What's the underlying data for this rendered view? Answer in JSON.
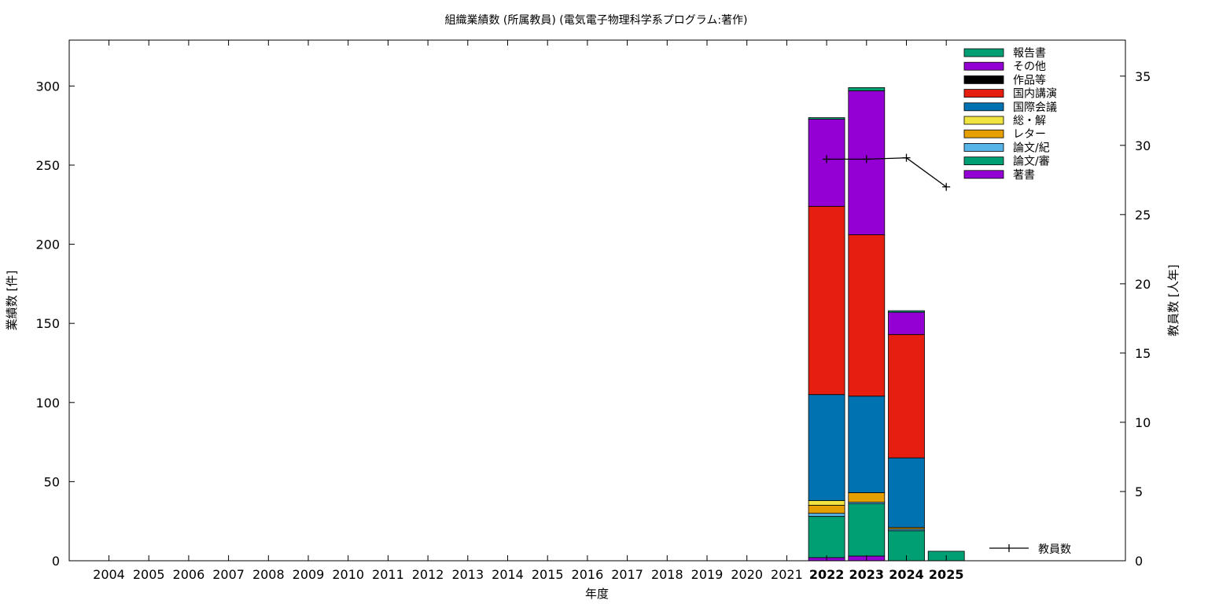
{
  "chart_data": {
    "type": "bar",
    "title": "組織業績数 (所属教員) (電気電子物理科学系プログラム:著作)",
    "xlabel": "年度",
    "ylabel": "業績数 [件]",
    "y2label": "教員数 [人年]",
    "categories": [
      "2004",
      "2005",
      "2006",
      "2007",
      "2008",
      "2009",
      "2010",
      "2011",
      "2012",
      "2013",
      "2014",
      "2015",
      "2016",
      "2017",
      "2018",
      "2019",
      "2020",
      "2021",
      "2022",
      "2023",
      "2024",
      "2025"
    ],
    "bold_categories": [
      "2022",
      "2023",
      "2024",
      "2025"
    ],
    "ylim": [
      0,
      329
    ],
    "y2lim": [
      0,
      37.6
    ],
    "yticks": [
      0,
      50,
      100,
      150,
      200,
      250,
      300
    ],
    "y2ticks": [
      0,
      5,
      10,
      15,
      20,
      25,
      30,
      35
    ],
    "grid": false,
    "legend_position": "top-right",
    "stacked": true,
    "series": [
      {
        "name": "著書",
        "color": "#9400d3",
        "values": [
          0,
          0,
          0,
          0,
          0,
          0,
          0,
          0,
          0,
          0,
          0,
          0,
          0,
          0,
          0,
          0,
          0,
          0,
          2,
          3,
          0,
          0
        ]
      },
      {
        "name": "論文/審",
        "color": "#009e73",
        "values": [
          0,
          0,
          0,
          0,
          0,
          0,
          0,
          0,
          0,
          0,
          0,
          0,
          0,
          0,
          0,
          0,
          0,
          0,
          26,
          33,
          19,
          0
        ]
      },
      {
        "name": "論文/紀",
        "color": "#56b4e9",
        "values": [
          0,
          0,
          0,
          0,
          0,
          0,
          0,
          0,
          0,
          0,
          0,
          0,
          0,
          0,
          0,
          0,
          0,
          0,
          2,
          1,
          1,
          0
        ]
      },
      {
        "name": "レター",
        "color": "#e69f00",
        "values": [
          0,
          0,
          0,
          0,
          0,
          0,
          0,
          0,
          0,
          0,
          0,
          0,
          0,
          0,
          0,
          0,
          0,
          0,
          5,
          6,
          1,
          0
        ]
      },
      {
        "name": "総・解",
        "color": "#f0e442",
        "values": [
          0,
          0,
          0,
          0,
          0,
          0,
          0,
          0,
          0,
          0,
          0,
          0,
          0,
          0,
          0,
          0,
          0,
          0,
          3,
          0,
          0,
          0
        ]
      },
      {
        "name": "国際会議",
        "color": "#0072b2",
        "values": [
          0,
          0,
          0,
          0,
          0,
          0,
          0,
          0,
          0,
          0,
          0,
          0,
          0,
          0,
          0,
          0,
          0,
          0,
          67,
          61,
          44,
          0
        ]
      },
      {
        "name": "国内講演",
        "color": "#e51e10",
        "values": [
          0,
          0,
          0,
          0,
          0,
          0,
          0,
          0,
          0,
          0,
          0,
          0,
          0,
          0,
          0,
          0,
          0,
          0,
          119,
          102,
          78,
          0
        ]
      },
      {
        "name": "作品等",
        "color": "#000000",
        "values": [
          0,
          0,
          0,
          0,
          0,
          0,
          0,
          0,
          0,
          0,
          0,
          0,
          0,
          0,
          0,
          0,
          0,
          0,
          0,
          0,
          0,
          0
        ]
      },
      {
        "name": "その他",
        "color": "#9400d3",
        "values": [
          0,
          0,
          0,
          0,
          0,
          0,
          0,
          0,
          0,
          0,
          0,
          0,
          0,
          0,
          0,
          0,
          0,
          0,
          55,
          91,
          14,
          0
        ]
      },
      {
        "name": "報告書",
        "color": "#009e73",
        "values": [
          0,
          0,
          0,
          0,
          0,
          0,
          0,
          0,
          0,
          0,
          0,
          0,
          0,
          0,
          0,
          0,
          0,
          0,
          1,
          2,
          1,
          6
        ]
      }
    ],
    "line_series": {
      "name": "教員数",
      "color": "#000000",
      "axis": "y2",
      "categories": [
        "2022",
        "2023",
        "2024",
        "2025"
      ],
      "values": [
        29,
        29,
        29.1,
        27
      ]
    }
  }
}
